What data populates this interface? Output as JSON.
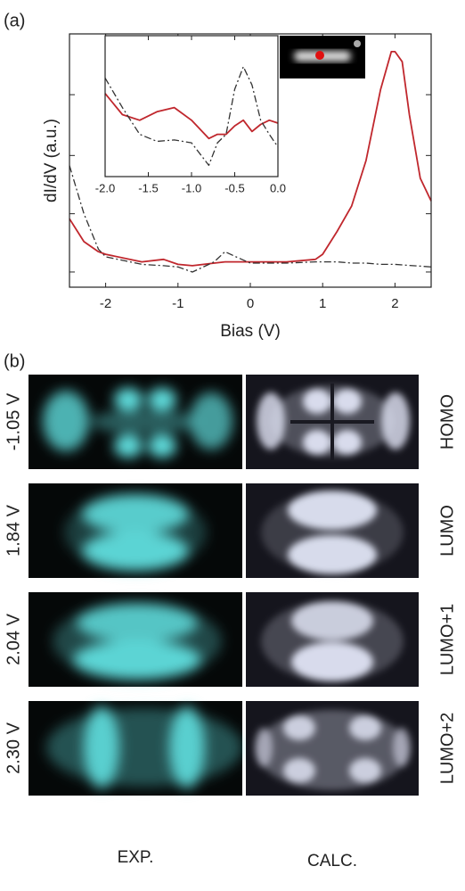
{
  "panel_a": {
    "label": "(a)"
  },
  "chart_data": [
    {
      "type": "line",
      "xlabel": "Bias (V)",
      "ylabel": "dI/dV (a.u.)",
      "x": [
        -2.5,
        -2.3,
        -2.1,
        -2,
        -1.5,
        -1.2,
        -1,
        -0.8,
        -0.5,
        -0.35,
        -0.2,
        0,
        0.5,
        0.9,
        1,
        1.2,
        1.4,
        1.6,
        1.8,
        1.95,
        2,
        2.1,
        2.2,
        2.35,
        2.5
      ],
      "series": [
        {
          "color": "#c0272d",
          "style": "solid",
          "values": [
            0.27,
            0.18,
            0.14,
            0.13,
            0.1,
            0.11,
            0.09,
            0.085,
            0.095,
            0.1,
            0.1,
            0.1,
            0.1,
            0.11,
            0.13,
            0.22,
            0.32,
            0.5,
            0.78,
            0.93,
            0.93,
            0.89,
            0.68,
            0.43,
            0.34
          ]
        },
        {
          "color": "#333333",
          "style": "dashdot",
          "values": [
            0.48,
            0.29,
            0.15,
            0.12,
            0.09,
            0.085,
            0.08,
            0.06,
            0.1,
            0.14,
            0.12,
            0.095,
            0.095,
            0.1,
            0.1,
            0.1,
            0.095,
            0.095,
            0.09,
            0.09,
            0.09,
            0.088,
            0.086,
            0.083,
            0.08
          ]
        }
      ],
      "xlim": [
        -2.5,
        2.5
      ],
      "xticks": [
        -2,
        -1,
        0,
        1,
        2
      ],
      "ylim": [
        0,
        1
      ],
      "yticks": [
        0.06,
        0.29,
        0.52,
        0.76
      ]
    },
    {
      "type": "line",
      "x": [
        -2,
        -1.8,
        -1.6,
        -1.4,
        -1.2,
        -1,
        -0.8,
        -0.7,
        -0.6,
        -0.5,
        -0.4,
        -0.3,
        -0.2,
        -0.1,
        0
      ],
      "series": [
        {
          "color": "#c0272d",
          "style": "solid",
          "values": [
            0.59,
            0.44,
            0.4,
            0.46,
            0.49,
            0.4,
            0.27,
            0.3,
            0.3,
            0.36,
            0.4,
            0.32,
            0.37,
            0.4,
            0.38
          ]
        },
        {
          "color": "#333333",
          "style": "dashdot",
          "values": [
            0.7,
            0.49,
            0.3,
            0.25,
            0.26,
            0.24,
            0.08,
            0.24,
            0.3,
            0.62,
            0.78,
            0.65,
            0.4,
            0.3,
            0.21
          ]
        }
      ],
      "xlim": [
        -2,
        0
      ],
      "xticks": [
        {
          "value": -2,
          "label": "-2.0"
        },
        -1.5,
        {
          "value": -1,
          "label": "-1.0"
        },
        -0.5,
        {
          "value": 0,
          "label": "0.0"
        }
      ],
      "ylim": [
        0,
        1
      ]
    }
  ],
  "panel_b": {
    "label": "(b)",
    "rows": [
      {
        "bias": "-1.05 V",
        "orbital": "HOMO"
      },
      {
        "bias": "1.84 V",
        "orbital": "LUMO"
      },
      {
        "bias": "2.04 V",
        "orbital": "LUMO+1"
      },
      {
        "bias": "2.30 V",
        "orbital": "LUMO+2"
      }
    ],
    "columns": [
      "EXP.",
      "CALC."
    ]
  }
}
